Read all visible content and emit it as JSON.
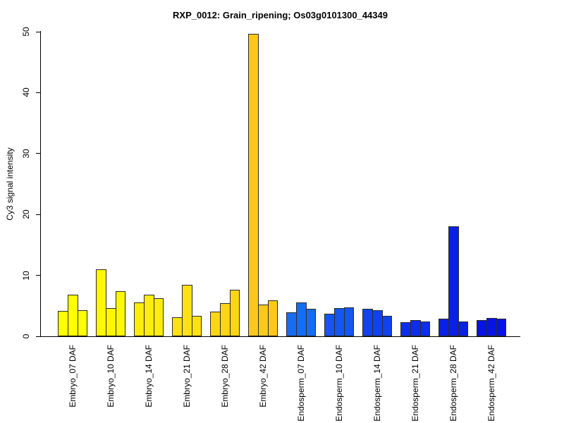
{
  "title": "RXP_0012: Grain_ripening; Os03g0101300_44349",
  "chart_data": {
    "type": "bar",
    "title": "RXP_0012: Grain_ripening; Os03g0101300_44349",
    "xlabel": "",
    "ylabel": "Cy3 signal intensity",
    "ylim": [
      0,
      50
    ],
    "yticks": [
      0,
      10,
      20,
      30,
      40,
      50
    ],
    "grid": false,
    "legend_position": "none",
    "bars_per_group": 3,
    "bar_border_color": "#2b2b2b",
    "groups": [
      {
        "label": "Embryo_07 DAF",
        "color": "#ffff00",
        "values": [
          4.2,
          6.8,
          4.3
        ]
      },
      {
        "label": "Embryo_10 DAF",
        "color": "#fff802",
        "values": [
          11.0,
          4.6,
          7.4
        ]
      },
      {
        "label": "Embryo_14 DAF",
        "color": "#feec0b",
        "values": [
          5.5,
          6.8,
          6.2
        ]
      },
      {
        "label": "Embryo_21 DAF",
        "color": "#fee112",
        "values": [
          3.1,
          8.4,
          3.3
        ]
      },
      {
        "label": "Embryo_28 DAF",
        "color": "#fdd516",
        "values": [
          4.0,
          5.4,
          7.6
        ]
      },
      {
        "label": "Embryo_42 DAF",
        "color": "#fcc919",
        "values": [
          49.7,
          5.2,
          5.9
        ]
      },
      {
        "label": "Endosperm_07 DAF",
        "color": "#176cf4",
        "values": [
          3.9,
          5.5,
          4.5
        ]
      },
      {
        "label": "Endosperm_10 DAF",
        "color": "#1356f0",
        "values": [
          3.7,
          4.6,
          4.7
        ]
      },
      {
        "label": "Endosperm_14 DAF",
        "color": "#0f43ed",
        "values": [
          4.5,
          4.3,
          3.4
        ]
      },
      {
        "label": "Endosperm_21 DAF",
        "color": "#0b2fe9",
        "values": [
          2.3,
          2.7,
          2.4
        ]
      },
      {
        "label": "Endosperm_28 DAF",
        "color": "#0a20e7",
        "values": [
          2.9,
          18.0,
          2.4
        ]
      },
      {
        "label": "Endosperm_42 DAF",
        "color": "#0713e4",
        "values": [
          2.7,
          3.0,
          2.9
        ]
      }
    ]
  },
  "colors": {
    "background": "#ffffff",
    "axis": "#000000"
  }
}
